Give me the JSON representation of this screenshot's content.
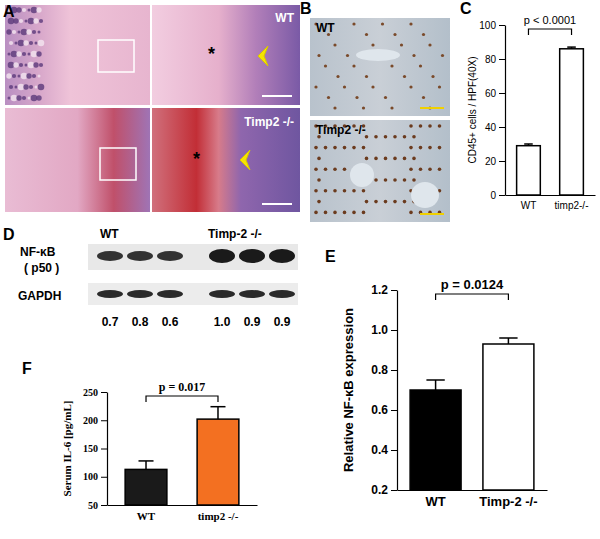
{
  "chart_data": [
    {
      "type": "bar",
      "title": "C",
      "categories": [
        "WT",
        "timp2-/-"
      ],
      "values": [
        29,
        86
      ],
      "errors": [
        1,
        1
      ],
      "colors": [
        "#ffffff",
        "#ffffff"
      ],
      "y_label": "CD45+ cells / HPF(40X)",
      "annotations": [
        "p < 0.0001"
      ],
      "ylim": [
        0,
        100
      ],
      "yticks": [
        0,
        20,
        40,
        60,
        80,
        100
      ]
    },
    {
      "type": "bar",
      "title": "E",
      "categories": [
        "WT",
        "Timp-2 -/-"
      ],
      "values": [
        0.7,
        0.93
      ],
      "errors": [
        0.05,
        0.03
      ],
      "colors": [
        "#000000",
        "#ffffff"
      ],
      "y_label": "Relative NF-κB expression",
      "annotations": [
        "p = 0.0124"
      ],
      "ylim": [
        0.2,
        1.2
      ],
      "yticks": [
        0.2,
        0.4,
        0.6,
        0.8,
        {
          "value": 1,
          "label": "1.0"
        },
        1.2
      ]
    },
    {
      "type": "bar",
      "title": "F",
      "categories": [
        "WT",
        "timp2 -/-"
      ],
      "values": [
        113,
        202
      ],
      "errors": [
        15,
        22
      ],
      "colors": [
        "#1a1a1a",
        "#f37021"
      ],
      "y_label": "Serum IL-6 [pg/mL]",
      "annotations": [
        "p = 0.017"
      ],
      "ylim": [
        50,
        250
      ],
      "yticks": [
        50,
        100,
        150,
        200,
        250
      ]
    }
  ],
  "figure": {
    "A": {
      "label": "A",
      "image_labels": [
        "WT",
        "Timp2 -/-"
      ],
      "asterisks": [
        "*",
        "*"
      ]
    },
    "B": {
      "label": "B",
      "image_labels": [
        "WT",
        "Timp2 -/-"
      ]
    },
    "D": {
      "label": "D",
      "groups": [
        "WT",
        "Timp-2 -/-"
      ],
      "row_labels": [
        "NF-κB",
        "( p50 )",
        "GAPDH"
      ],
      "densities": [
        0.7,
        0.8,
        0.6,
        {
          "value": 1,
          "label": "1.0"
        },
        0.9,
        0.9
      ]
    }
  }
}
